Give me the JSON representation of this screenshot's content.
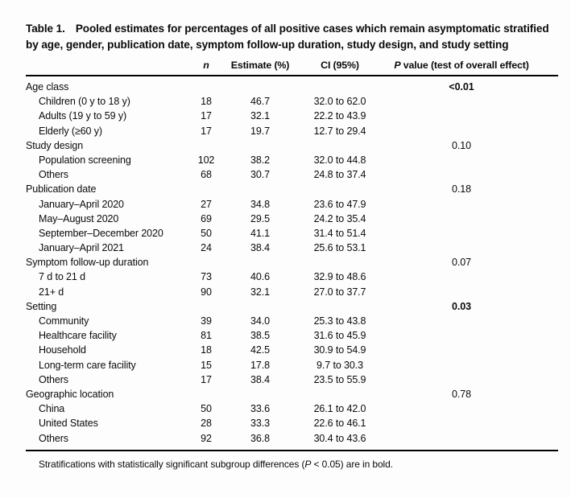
{
  "table": {
    "label": "Table 1.",
    "title": "Pooled estimates for percentages of all positive cases which remain asymptomatic stratified by age, gender, publication date, symptom follow-up duration, study design, and study setting",
    "columns": {
      "n": "n",
      "estimate": "Estimate (%)",
      "ci": "CI (95%)",
      "p_italic": "P",
      "p_rest": " value (test of overall effect)"
    },
    "sections": [
      {
        "label": "Age class",
        "p_value": "<0.01",
        "p_bold": true,
        "rows": [
          {
            "label": "Children (0 y to 18 y)",
            "n": "18",
            "estimate": "46.7",
            "ci": "32.0 to 62.0"
          },
          {
            "label": "Adults (19 y to 59 y)",
            "n": "17",
            "estimate": "32.1",
            "ci": "22.2 to 43.9"
          },
          {
            "label": "Elderly (≥60 y)",
            "n": "17",
            "estimate": "19.7",
            "ci": "12.7 to 29.4"
          }
        ]
      },
      {
        "label": "Study design",
        "p_value": "0.10",
        "p_bold": false,
        "rows": [
          {
            "label": "Population screening",
            "n": "102",
            "estimate": "38.2",
            "ci": "32.0 to 44.8"
          },
          {
            "label": "Others",
            "n": "68",
            "estimate": "30.7",
            "ci": "24.8 to 37.4"
          }
        ]
      },
      {
        "label": "Publication date",
        "p_value": "0.18",
        "p_bold": false,
        "rows": [
          {
            "label": "January–April 2020",
            "n": "27",
            "estimate": "34.8",
            "ci": "23.6 to 47.9"
          },
          {
            "label": "May–August 2020",
            "n": "69",
            "estimate": "29.5",
            "ci": "24.2 to 35.4"
          },
          {
            "label": "September–December 2020",
            "n": "50",
            "estimate": "41.1",
            "ci": "31.4 to 51.4"
          },
          {
            "label": "January–April 2021",
            "n": "24",
            "estimate": "38.4",
            "ci": "25.6 to 53.1"
          }
        ]
      },
      {
        "label": "Symptom follow-up duration",
        "p_value": "0.07",
        "p_bold": false,
        "rows": [
          {
            "label": "7 d to 21 d",
            "n": "73",
            "estimate": "40.6",
            "ci": "32.9 to 48.6"
          },
          {
            "label": "21+ d",
            "n": "90",
            "estimate": "32.1",
            "ci": "27.0 to 37.7"
          }
        ]
      },
      {
        "label": "Setting",
        "p_value": "0.03",
        "p_bold": true,
        "rows": [
          {
            "label": "Community",
            "n": "39",
            "estimate": "34.0",
            "ci": "25.3 to 43.8"
          },
          {
            "label": "Healthcare facility",
            "n": "81",
            "estimate": "38.5",
            "ci": "31.6 to 45.9"
          },
          {
            "label": "Household",
            "n": "18",
            "estimate": "42.5",
            "ci": "30.9 to 54.9"
          },
          {
            "label": "Long-term care facility",
            "n": "15",
            "estimate": "17.8",
            "ci": "9.7 to 30.3"
          },
          {
            "label": "Others",
            "n": "17",
            "estimate": "38.4",
            "ci": "23.5 to 55.9"
          }
        ]
      },
      {
        "label": "Geographic location",
        "p_value": "0.78",
        "p_bold": false,
        "rows": [
          {
            "label": "China",
            "n": "50",
            "estimate": "33.6",
            "ci": "26.1 to 42.0"
          },
          {
            "label": "United States",
            "n": "28",
            "estimate": "33.3",
            "ci": "22.6 to 46.1"
          },
          {
            "label": "Others",
            "n": "92",
            "estimate": "36.8",
            "ci": "30.4 to 43.6"
          }
        ]
      }
    ],
    "footnote": {
      "pre": "Stratifications with statistically significant subgroup differences (",
      "p": "P",
      "post": " < 0.05) are in bold."
    }
  }
}
